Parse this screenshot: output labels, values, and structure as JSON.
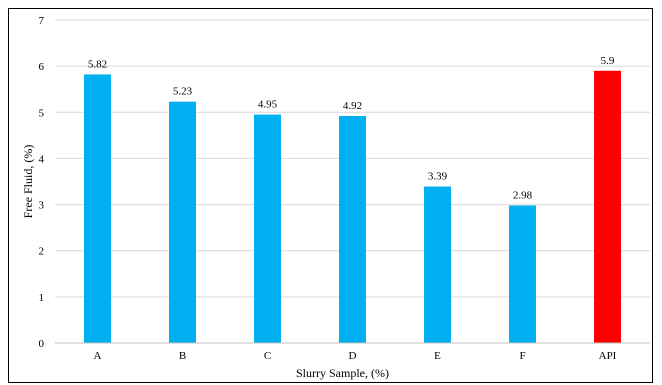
{
  "chart_data": {
    "type": "bar",
    "categories": [
      "A",
      "B",
      "C",
      "D",
      "E",
      "F",
      "API"
    ],
    "values": [
      5.82,
      5.23,
      4.95,
      4.92,
      3.39,
      2.98,
      5.9
    ],
    "data_labels": [
      "5.82",
      "5.23",
      "4.95",
      "4.92",
      "3.39",
      "2.98",
      "5.9"
    ],
    "bar_colors": [
      "#00b0f0",
      "#00b0f0",
      "#00b0f0",
      "#00b0f0",
      "#00b0f0",
      "#00b0f0",
      "#ff0000"
    ],
    "title": "",
    "xlabel": "Slurry Sample, (%)",
    "ylabel": "Free Fluid, (%)",
    "ylim": [
      0,
      7
    ],
    "yticks": [
      0,
      1,
      2,
      3,
      4,
      5,
      6,
      7
    ],
    "grid": true,
    "legend": "none"
  }
}
